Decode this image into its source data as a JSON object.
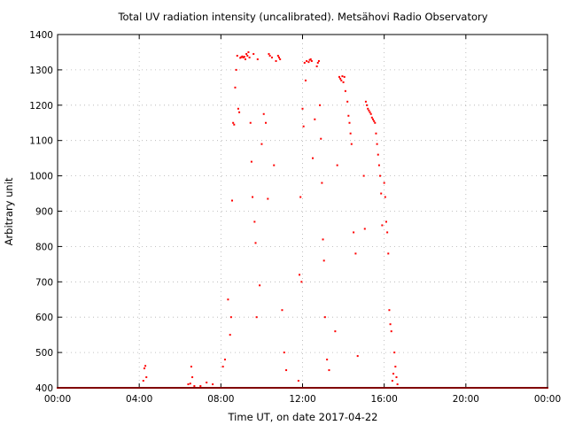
{
  "chart_data": {
    "type": "scatter",
    "title": "Total UV radiation intensity (uncalibrated). Metsähovi Radio Observatory",
    "xlabel": "Time UT, on date 2017-04-22",
    "ylabel": "Arbitrary unit",
    "xlim": [
      0,
      24
    ],
    "ylim": [
      400,
      1400
    ],
    "x_ticks": [
      0,
      4,
      8,
      12,
      16,
      20,
      24
    ],
    "x_tick_labels": [
      "00:00",
      "04:00",
      "08:00",
      "12:00",
      "16:00",
      "20:00",
      "00:00"
    ],
    "y_ticks": [
      400,
      500,
      600,
      700,
      800,
      900,
      1000,
      1100,
      1200,
      1300,
      1400
    ],
    "y_tick_labels": [
      "400",
      "500",
      "600",
      "700",
      "800",
      "900",
      "1000",
      "1100",
      "1200",
      "1300",
      "1400"
    ],
    "grid": true,
    "color": "#ff0000",
    "series": [
      {
        "x_start": 0.0,
        "x_end": 24.0,
        "x_step": 0.05,
        "y": 400,
        "points": [
          [
            4.2,
            420
          ],
          [
            4.25,
            455
          ],
          [
            4.3,
            462
          ],
          [
            4.35,
            430
          ],
          [
            6.4,
            410
          ],
          [
            6.5,
            412
          ],
          [
            6.55,
            460
          ],
          [
            6.6,
            430
          ],
          [
            6.7,
            405
          ],
          [
            7.0,
            405
          ],
          [
            7.3,
            415
          ],
          [
            7.6,
            410
          ],
          [
            8.1,
            460
          ],
          [
            8.2,
            480
          ],
          [
            8.35,
            650
          ],
          [
            8.45,
            550
          ],
          [
            8.5,
            600
          ],
          [
            8.55,
            930
          ],
          [
            8.6,
            1150
          ],
          [
            8.65,
            1145
          ],
          [
            8.7,
            1250
          ],
          [
            8.75,
            1300
          ],
          [
            8.8,
            1340
          ],
          [
            8.85,
            1190
          ],
          [
            8.9,
            1180
          ],
          [
            8.95,
            1334
          ],
          [
            9.0,
            1336
          ],
          [
            9.05,
            1338
          ],
          [
            9.1,
            1335
          ],
          [
            9.15,
            1337
          ],
          [
            9.2,
            1330
          ],
          [
            9.25,
            1345
          ],
          [
            9.3,
            1340
          ],
          [
            9.35,
            1350
          ],
          [
            9.4,
            1335
          ],
          [
            9.45,
            1150
          ],
          [
            9.5,
            1040
          ],
          [
            9.55,
            940
          ],
          [
            9.6,
            1345
          ],
          [
            9.65,
            870
          ],
          [
            9.7,
            810
          ],
          [
            9.75,
            600
          ],
          [
            9.8,
            1330
          ],
          [
            9.9,
            690
          ],
          [
            10.0,
            1090
          ],
          [
            10.1,
            1175
          ],
          [
            10.2,
            1150
          ],
          [
            10.3,
            935
          ],
          [
            10.35,
            1345
          ],
          [
            10.4,
            1340
          ],
          [
            10.5,
            1335
          ],
          [
            10.6,
            1030
          ],
          [
            10.7,
            1325
          ],
          [
            10.8,
            1340
          ],
          [
            10.85,
            1335
          ],
          [
            10.9,
            1330
          ],
          [
            11.0,
            620
          ],
          [
            11.1,
            500
          ],
          [
            11.2,
            450
          ],
          [
            11.8,
            420
          ],
          [
            11.85,
            720
          ],
          [
            11.9,
            940
          ],
          [
            11.95,
            700
          ],
          [
            12.0,
            1190
          ],
          [
            12.05,
            1140
          ],
          [
            12.1,
            1320
          ],
          [
            12.15,
            1270
          ],
          [
            12.2,
            1325
          ],
          [
            12.3,
            1322
          ],
          [
            12.35,
            1328
          ],
          [
            12.4,
            1330
          ],
          [
            12.45,
            1325
          ],
          [
            12.5,
            1050
          ],
          [
            12.6,
            1160
          ],
          [
            12.7,
            1310
          ],
          [
            12.75,
            1320
          ],
          [
            12.8,
            1325
          ],
          [
            12.85,
            1200
          ],
          [
            12.9,
            1105
          ],
          [
            12.95,
            980
          ],
          [
            13.0,
            820
          ],
          [
            13.05,
            760
          ],
          [
            13.1,
            600
          ],
          [
            13.2,
            480
          ],
          [
            13.3,
            450
          ],
          [
            13.6,
            560
          ],
          [
            13.7,
            1030
          ],
          [
            13.8,
            1280
          ],
          [
            13.85,
            1275
          ],
          [
            13.9,
            1270
          ],
          [
            13.95,
            1282
          ],
          [
            14.0,
            1265
          ],
          [
            14.05,
            1280
          ],
          [
            14.1,
            1240
          ],
          [
            14.2,
            1210
          ],
          [
            14.25,
            1170
          ],
          [
            14.3,
            1150
          ],
          [
            14.35,
            1120
          ],
          [
            14.4,
            1090
          ],
          [
            14.5,
            840
          ],
          [
            14.6,
            780
          ],
          [
            14.7,
            490
          ],
          [
            15.0,
            1000
          ],
          [
            15.05,
            850
          ],
          [
            15.1,
            1210
          ],
          [
            15.15,
            1200
          ],
          [
            15.2,
            1190
          ],
          [
            15.25,
            1185
          ],
          [
            15.3,
            1180
          ],
          [
            15.35,
            1175
          ],
          [
            15.4,
            1165
          ],
          [
            15.45,
            1160
          ],
          [
            15.5,
            1155
          ],
          [
            15.55,
            1150
          ],
          [
            15.6,
            1120
          ],
          [
            15.65,
            1090
          ],
          [
            15.7,
            1060
          ],
          [
            15.75,
            1030
          ],
          [
            15.8,
            1000
          ],
          [
            15.85,
            950
          ],
          [
            15.9,
            860
          ],
          [
            16.0,
            980
          ],
          [
            16.05,
            940
          ],
          [
            16.1,
            870
          ],
          [
            16.15,
            840
          ],
          [
            16.2,
            780
          ],
          [
            16.25,
            620
          ],
          [
            16.3,
            580
          ],
          [
            16.35,
            560
          ],
          [
            16.4,
            420
          ],
          [
            16.45,
            440
          ],
          [
            16.5,
            500
          ],
          [
            16.55,
            460
          ],
          [
            16.6,
            430
          ],
          [
            16.65,
            410
          ]
        ]
      }
    ]
  }
}
